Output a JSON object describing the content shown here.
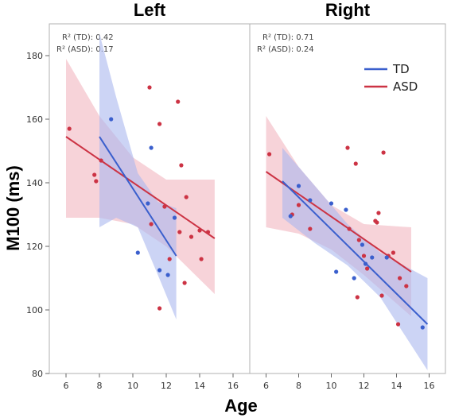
{
  "chart_data": {
    "type": "scatter",
    "ylabel": "M100 (ms)",
    "xlabel": "Age",
    "ylim": [
      80,
      190
    ],
    "yticks": [
      "80",
      "100",
      "120",
      "140",
      "160",
      "180"
    ],
    "legend": {
      "placement": "top-right",
      "entries": [
        {
          "name": "TD",
          "color": "#3a5fcd"
        },
        {
          "name": "ASD",
          "color": "#cc3344"
        }
      ]
    },
    "colors": {
      "TD": "#3a5fcd",
      "ASD": "#cc3344",
      "TD_band": "#aab8ee",
      "ASD_band": "#f2b6bf",
      "frame": "#b0b0b0"
    },
    "panels": [
      {
        "title": "Left",
        "xlim": [
          5,
          17
        ],
        "xticks": [
          "6",
          "8",
          "10",
          "12",
          "14",
          "16"
        ],
        "r2_td": "R² (TD): 0.42",
        "r2_asd": "R² (ASD): 0.17",
        "series": [
          {
            "name": "TD",
            "points": [
              [
                8.7,
                160
              ],
              [
                10.3,
                118
              ],
              [
                10.9,
                133.5
              ],
              [
                11.1,
                151
              ],
              [
                11.6,
                112.5
              ],
              [
                12.1,
                111
              ],
              [
                12.5,
                129
              ]
            ],
            "fit": [
              [
                8.0,
                154.5
              ],
              [
                12.6,
                117
              ]
            ],
            "band": {
              "upper": [
                [
                  8.0,
                  187
                ],
                [
                  9.0,
                  167
                ],
                [
                  10.3,
                  143
                ],
                [
                  11.5,
                  134
                ],
                [
                  12.6,
                  132
                ]
              ],
              "lower": [
                [
                  8.0,
                  126
                ],
                [
                  9.0,
                  129
                ],
                [
                  10.3,
                  126
                ],
                [
                  11.5,
                  111
                ],
                [
                  12.6,
                  97
                ]
              ]
            }
          },
          {
            "name": "ASD",
            "points": [
              [
                6.2,
                157
              ],
              [
                7.7,
                142.5
              ],
              [
                7.8,
                140.5
              ],
              [
                8.1,
                147
              ],
              [
                11.0,
                170
              ],
              [
                11.1,
                127
              ],
              [
                11.6,
                158.5
              ],
              [
                11.6,
                100.5
              ],
              [
                11.9,
                132.5
              ],
              [
                12.2,
                116
              ],
              [
                12.7,
                165.5
              ],
              [
                12.8,
                124.5
              ],
              [
                12.9,
                145.5
              ],
              [
                13.1,
                108.5
              ],
              [
                13.2,
                135.5
              ],
              [
                13.5,
                123
              ],
              [
                14.0,
                125
              ],
              [
                14.1,
                116
              ],
              [
                14.5,
                124.5
              ]
            ],
            "fit": [
              [
                6.0,
                154.5
              ],
              [
                14.9,
                122.5
              ]
            ],
            "band": {
              "upper": [
                [
                  6.0,
                  179
                ],
                [
                  8.0,
                  161
                ],
                [
                  10.0,
                  148
                ],
                [
                  12.0,
                  141
                ],
                [
                  14.9,
                  141
                ]
              ],
              "lower": [
                [
                  6.0,
                  129
                ],
                [
                  8.0,
                  129
                ],
                [
                  10.0,
                  127
                ],
                [
                  12.0,
                  120
                ],
                [
                  14.9,
                  105
                ]
              ]
            }
          }
        ]
      },
      {
        "title": "Right",
        "xlim": [
          5,
          17
        ],
        "xticks": [
          "6",
          "8",
          "10",
          "12",
          "14",
          "16"
        ],
        "r2_td": "R² (TD): 0.71",
        "r2_asd": "R² (ASD): 0.24",
        "series": [
          {
            "name": "TD",
            "points": [
              [
                7.5,
                129.5
              ],
              [
                8.0,
                139
              ],
              [
                8.7,
                134.5
              ],
              [
                10.0,
                133.5
              ],
              [
                10.3,
                112
              ],
              [
                10.9,
                131.5
              ],
              [
                11.4,
                110
              ],
              [
                11.9,
                120.5
              ],
              [
                12.1,
                114.5
              ],
              [
                12.5,
                116.5
              ],
              [
                13.4,
                116.5
              ],
              [
                15.6,
                94.5
              ]
            ],
            "fit": [
              [
                7.0,
                140.5
              ],
              [
                15.9,
                95.5
              ]
            ],
            "band": {
              "upper": [
                [
                  7.0,
                  151
                ],
                [
                  9.0,
                  139
                ],
                [
                  11.0,
                  127
                ],
                [
                  13.0,
                  118
                ],
                [
                  15.9,
                  110
                ]
              ],
              "lower": [
                [
                  7.0,
                  129
                ],
                [
                  9.0,
                  121
                ],
                [
                  11.0,
                  114
                ],
                [
                  13.0,
                  104
                ],
                [
                  15.9,
                  81
                ]
              ]
            }
          },
          {
            "name": "ASD",
            "points": [
              [
                6.2,
                149
              ],
              [
                7.6,
                130
              ],
              [
                8.0,
                133
              ],
              [
                8.7,
                125.5
              ],
              [
                11.0,
                151
              ],
              [
                11.1,
                125.5
              ],
              [
                11.5,
                146
              ],
              [
                11.6,
                104
              ],
              [
                11.7,
                122
              ],
              [
                12.0,
                117
              ],
              [
                12.2,
                113
              ],
              [
                12.7,
                128
              ],
              [
                12.8,
                127.5
              ],
              [
                12.9,
                130.5
              ],
              [
                13.1,
                104.5
              ],
              [
                13.2,
                149.5
              ],
              [
                13.5,
                117
              ],
              [
                13.8,
                118
              ],
              [
                14.1,
                95.5
              ],
              [
                14.2,
                110
              ],
              [
                14.6,
                107.5
              ]
            ],
            "fit": [
              [
                6.0,
                143.5
              ],
              [
                14.9,
                112
              ]
            ],
            "band": {
              "upper": [
                [
                  6.0,
                  161
                ],
                [
                  8.0,
                  145
                ],
                [
                  10.0,
                  133
                ],
                [
                  12.0,
                  127
                ],
                [
                  14.9,
                  126
                ]
              ],
              "lower": [
                [
                  6.0,
                  126
                ],
                [
                  8.0,
                  124
                ],
                [
                  10.0,
                  119
                ],
                [
                  12.0,
                  111
                ],
                [
                  14.9,
                  98
                ]
              ]
            }
          }
        ]
      }
    ]
  }
}
